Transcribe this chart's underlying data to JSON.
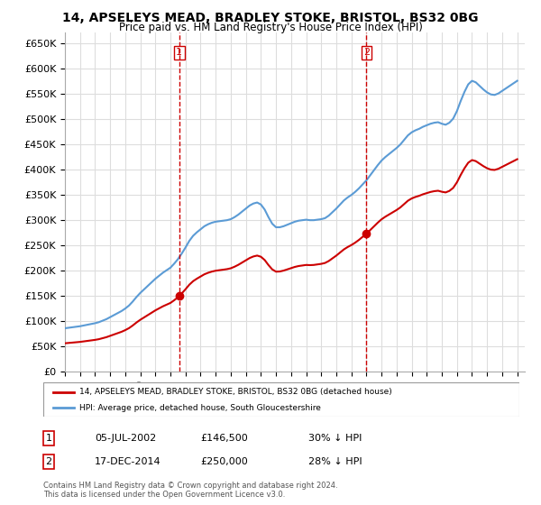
{
  "title": "14, APSELEYS MEAD, BRADLEY STOKE, BRISTOL, BS32 0BG",
  "subtitle": "Price paid vs. HM Land Registry's House Price Index (HPI)",
  "legend_line1": "14, APSELEYS MEAD, BRADLEY STOKE, BRISTOL, BS32 0BG (detached house)",
  "legend_line2": "HPI: Average price, detached house, South Gloucestershire",
  "transaction1_date": "05-JUL-2002",
  "transaction1_price": 146500,
  "transaction1_label": "30% ↓ HPI",
  "transaction2_date": "17-DEC-2014",
  "transaction2_price": 250000,
  "transaction2_label": "28% ↓ HPI",
  "footnote": "Contains HM Land Registry data © Crown copyright and database right 2024.\nThis data is licensed under the Open Government Licence v3.0.",
  "red_color": "#cc0000",
  "blue_color": "#5b9bd5",
  "grid_color": "#dddddd",
  "background_color": "#ffffff",
  "ylim": [
    0,
    670000
  ],
  "yticks": [
    0,
    50000,
    100000,
    150000,
    200000,
    250000,
    300000,
    350000,
    400000,
    450000,
    500000,
    550000,
    600000,
    650000
  ]
}
